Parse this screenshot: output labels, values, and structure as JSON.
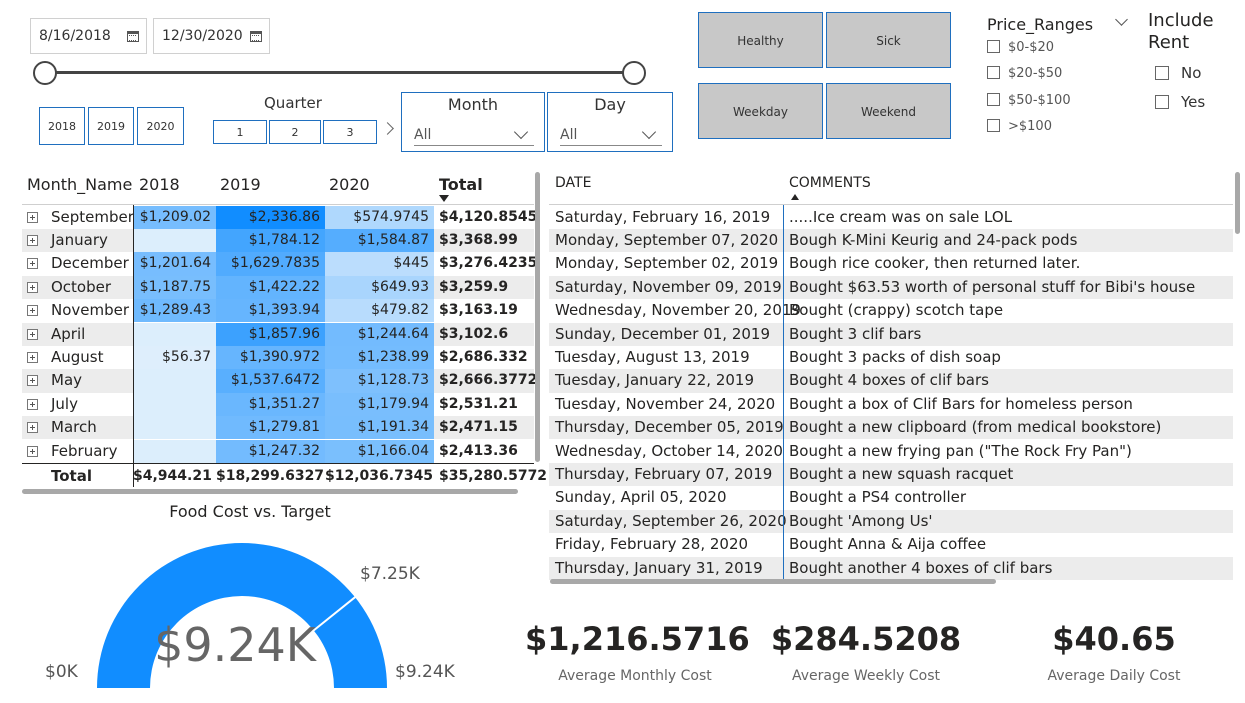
{
  "date_range": {
    "start": "8/16/2018",
    "end": "12/30/2020"
  },
  "years": [
    "2018",
    "2019",
    "2020"
  ],
  "quarter": {
    "title": "Quarter",
    "options": [
      "1",
      "2",
      "3"
    ]
  },
  "month_filter": {
    "title": "Month",
    "value": "All"
  },
  "day_filter": {
    "title": "Day",
    "value": "All"
  },
  "category_buttons": [
    "Healthy",
    "Sick",
    "Weekday",
    "Weekend"
  ],
  "price_ranges": {
    "title": "Price_Ranges",
    "options": [
      "$0-$20",
      "$20-$50",
      "$50-$100",
      ">$100"
    ]
  },
  "include_rent": {
    "title": "Include Rent",
    "options": [
      "No",
      "Yes"
    ]
  },
  "matrix": {
    "headers": [
      "Month_Name",
      "2018",
      "2019",
      "2020",
      "Total"
    ],
    "rows": [
      {
        "month": "September",
        "y2018": "$1,209.02",
        "y2019": "$2,336.86",
        "y2020": "$574.9745",
        "total": "$4,120.8545"
      },
      {
        "month": "January",
        "y2018": "",
        "y2019": "$1,784.12",
        "y2020": "$1,584.87",
        "total": "$3,368.99"
      },
      {
        "month": "December",
        "y2018": "$1,201.64",
        "y2019": "$1,629.7835",
        "y2020": "$445",
        "total": "$3,276.4235"
      },
      {
        "month": "October",
        "y2018": "$1,187.75",
        "y2019": "$1,422.22",
        "y2020": "$649.93",
        "total": "$3,259.9"
      },
      {
        "month": "November",
        "y2018": "$1,289.43",
        "y2019": "$1,393.94",
        "y2020": "$479.82",
        "total": "$3,163.19"
      },
      {
        "month": "April",
        "y2018": "",
        "y2019": "$1,857.96",
        "y2020": "$1,244.64",
        "total": "$3,102.6"
      },
      {
        "month": "August",
        "y2018": "$56.37",
        "y2019": "$1,390.972",
        "y2020": "$1,238.99",
        "total": "$2,686.332"
      },
      {
        "month": "May",
        "y2018": "",
        "y2019": "$1,537.6472",
        "y2020": "$1,128.73",
        "total": "$2,666.3772"
      },
      {
        "month": "July",
        "y2018": "",
        "y2019": "$1,351.27",
        "y2020": "$1,179.94",
        "total": "$2,531.21"
      },
      {
        "month": "March",
        "y2018": "",
        "y2019": "$1,279.81",
        "y2020": "$1,191.34",
        "total": "$2,471.15"
      },
      {
        "month": "February",
        "y2018": "",
        "y2019": "$1,247.32",
        "y2020": "$1,166.04",
        "total": "$2,413.36"
      }
    ],
    "total_row": {
      "label": "Total",
      "y2018": "$4,944.21",
      "y2019": "$18,299.6327",
      "y2020": "$12,036.7345",
      "total": "$35,280.5772"
    }
  },
  "comments_table": {
    "headers": [
      "DATE",
      "COMMENTS"
    ],
    "rows": [
      {
        "date": "Saturday, February 16, 2019",
        "comment": ".....Ice cream was on sale LOL"
      },
      {
        "date": "Monday, September 07, 2020",
        "comment": "Bough K-Mini Keurig and 24-pack pods"
      },
      {
        "date": "Monday, September 02, 2019",
        "comment": "Bough rice cooker, then returned later."
      },
      {
        "date": "Saturday, November 09, 2019",
        "comment": "Bought $63.53 worth of personal stuff for Bibi's house"
      },
      {
        "date": "Wednesday, November 20, 2019",
        "comment": "Bought (crappy) scotch tape"
      },
      {
        "date": "Sunday, December 01, 2019",
        "comment": "Bought 3 clif bars"
      },
      {
        "date": "Tuesday, August 13, 2019",
        "comment": "Bought 3 packs of dish soap"
      },
      {
        "date": "Tuesday, January 22, 2019",
        "comment": "Bought 4 boxes of clif bars"
      },
      {
        "date": "Tuesday, November 24, 2020",
        "comment": "Bought a box of Clif Bars for homeless person"
      },
      {
        "date": "Thursday, December 05, 2019",
        "comment": "Bought a new clipboard (from medical bookstore)"
      },
      {
        "date": "Wednesday, October 14, 2020",
        "comment": "Bought a new frying pan (\"The Rock Fry Pan\")"
      },
      {
        "date": "Thursday, February 07, 2019",
        "comment": "Bought a new squash racquet"
      },
      {
        "date": "Sunday, April 05, 2020",
        "comment": "Bought a PS4 controller"
      },
      {
        "date": "Saturday, September 26, 2020",
        "comment": "Bought 'Among Us'"
      },
      {
        "date": "Friday, February 28, 2020",
        "comment": "Bought Anna & Aija coffee"
      },
      {
        "date": "Thursday, January 31, 2019",
        "comment": "Bought another 4 boxes of clif bars"
      }
    ]
  },
  "gauge": {
    "title": "Food Cost vs. Target",
    "value_label": "$9.24K",
    "min_label": "$0K",
    "max_label": "$9.24K",
    "target_label": "$7.25K",
    "value": 9.24,
    "min": 0,
    "max": 9.24,
    "target": 7.25,
    "fill_color": "#118DFF"
  },
  "kpis": [
    {
      "value": "$1,216.5716",
      "label": "Average Monthly Cost"
    },
    {
      "value": "$284.5208",
      "label": "Average Weekly Cost"
    },
    {
      "value": "$40.65",
      "label": "Average Daily Cost"
    }
  ],
  "colors": {
    "accent": "#118DFF",
    "border_blue": "#1f6fbf"
  }
}
